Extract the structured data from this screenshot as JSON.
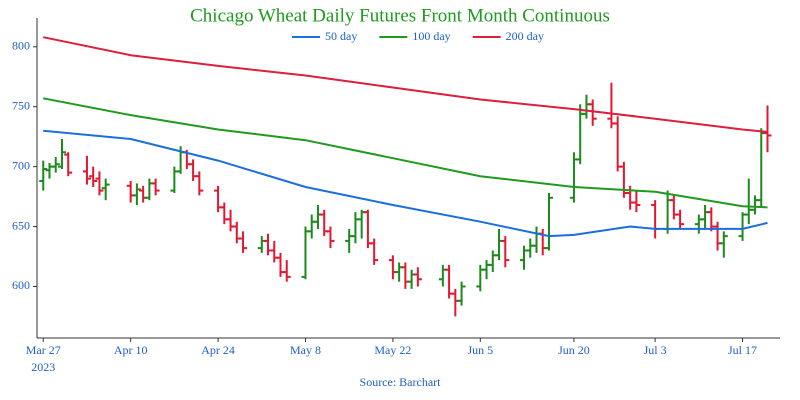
{
  "chart_data": {
    "type": "ohlc",
    "title": "Chicago Wheat Daily Futures Front Month Continuous",
    "source": "Source: Barchart",
    "x_year_label": "2023",
    "title_color": "#1e9a1e",
    "up_color": "#1a8a1a",
    "down_color": "#e3172f",
    "legend": "top",
    "x": [
      "2023-03-27",
      "2023-03-28",
      "2023-03-29",
      "2023-03-30",
      "2023-03-31",
      "2023-04-03",
      "2023-04-04",
      "2023-04-05",
      "2023-04-06",
      "2023-04-10",
      "2023-04-11",
      "2023-04-12",
      "2023-04-13",
      "2023-04-14",
      "2023-04-17",
      "2023-04-18",
      "2023-04-19",
      "2023-04-20",
      "2023-04-21",
      "2023-04-24",
      "2023-04-25",
      "2023-04-26",
      "2023-04-27",
      "2023-04-28",
      "2023-05-01",
      "2023-05-02",
      "2023-05-03",
      "2023-05-04",
      "2023-05-05",
      "2023-05-08",
      "2023-05-09",
      "2023-05-10",
      "2023-05-11",
      "2023-05-12",
      "2023-05-15",
      "2023-05-16",
      "2023-05-17",
      "2023-05-18",
      "2023-05-19",
      "2023-05-22",
      "2023-05-23",
      "2023-05-24",
      "2023-05-25",
      "2023-05-26",
      "2023-05-30",
      "2023-05-31",
      "2023-06-01",
      "2023-06-02",
      "2023-06-05",
      "2023-06-06",
      "2023-06-07",
      "2023-06-08",
      "2023-06-09",
      "2023-06-12",
      "2023-06-13",
      "2023-06-14",
      "2023-06-15",
      "2023-06-16",
      "2023-06-20",
      "2023-06-21",
      "2023-06-22",
      "2023-06-23",
      "2023-06-26",
      "2023-06-27",
      "2023-06-28",
      "2023-06-29",
      "2023-06-30",
      "2023-07-03",
      "2023-07-05",
      "2023-07-06",
      "2023-07-07",
      "2023-07-10",
      "2023-07-11",
      "2023-07-12",
      "2023-07-13",
      "2023-07-14",
      "2023-07-17",
      "2023-07-18",
      "2023-07-19",
      "2023-07-20",
      "2023-07-21"
    ],
    "open": [
      688,
      697,
      700,
      700,
      710,
      696,
      692,
      690,
      682,
      684,
      676,
      680,
      674,
      686,
      680,
      696,
      712,
      702,
      692,
      680,
      666,
      656,
      650,
      640,
      632,
      638,
      630,
      624,
      612,
      608,
      646,
      654,
      660,
      646,
      638,
      642,
      656,
      662,
      636,
      622,
      612,
      616,
      604,
      610,
      606,
      614,
      594,
      588,
      600,
      614,
      618,
      626,
      638,
      622,
      630,
      634,
      644,
      632,
      674,
      706,
      744,
      752,
      740,
      736,
      700,
      678,
      670,
      668,
      648,
      672,
      660,
      652,
      656,
      662,
      650,
      636,
      642,
      660,
      664,
      672,
      728
    ],
    "high": [
      705,
      703,
      708,
      723,
      712,
      709,
      700,
      696,
      690,
      688,
      686,
      684,
      690,
      690,
      700,
      717,
      714,
      706,
      696,
      684,
      670,
      664,
      654,
      646,
      642,
      644,
      638,
      628,
      622,
      650,
      660,
      668,
      664,
      650,
      648,
      662,
      664,
      664,
      640,
      626,
      620,
      620,
      614,
      616,
      618,
      618,
      598,
      604,
      618,
      622,
      630,
      648,
      642,
      634,
      640,
      650,
      648,
      678,
      712,
      752,
      760,
      756,
      770,
      742,
      704,
      684,
      680,
      672,
      680,
      676,
      664,
      660,
      668,
      666,
      654,
      646,
      662,
      690,
      676,
      732,
      751
    ],
    "low": [
      680,
      690,
      695,
      698,
      692,
      685,
      683,
      676,
      672,
      670,
      668,
      670,
      672,
      676,
      678,
      694,
      698,
      688,
      676,
      662,
      652,
      646,
      636,
      628,
      628,
      626,
      620,
      608,
      604,
      606,
      640,
      648,
      642,
      632,
      628,
      636,
      640,
      632,
      618,
      606,
      604,
      598,
      598,
      600,
      600,
      590,
      575,
      584,
      596,
      606,
      612,
      622,
      616,
      614,
      624,
      628,
      626,
      630,
      670,
      702,
      740,
      734,
      732,
      696,
      674,
      664,
      662,
      640,
      644,
      656,
      648,
      644,
      648,
      646,
      630,
      624,
      638,
      652,
      660,
      666,
      712
    ],
    "close": [
      698,
      700,
      702,
      712,
      695,
      690,
      688,
      680,
      685,
      676,
      681,
      674,
      686,
      680,
      696,
      712,
      702,
      692,
      680,
      666,
      656,
      650,
      640,
      632,
      638,
      630,
      624,
      612,
      608,
      646,
      654,
      660,
      646,
      638,
      642,
      656,
      662,
      636,
      622,
      612,
      616,
      604,
      610,
      606,
      614,
      594,
      588,
      600,
      614,
      618,
      626,
      638,
      622,
      630,
      634,
      644,
      632,
      674,
      706,
      744,
      752,
      740,
      736,
      700,
      678,
      670,
      668,
      648,
      672,
      660,
      652,
      656,
      662,
      650,
      636,
      642,
      660,
      664,
      672,
      728,
      726
    ],
    "overlays": [
      {
        "name": "50 day",
        "color": "#1a6fdc",
        "x": [
          "2023-03-27",
          "2023-04-10",
          "2023-04-24",
          "2023-05-08",
          "2023-05-22",
          "2023-06-05",
          "2023-06-16",
          "2023-06-20",
          "2023-06-29",
          "2023-07-03",
          "2023-07-17",
          "2023-07-21"
        ],
        "values": [
          730,
          723,
          705,
          683,
          668,
          654,
          642,
          643,
          650,
          648,
          648,
          653
        ]
      },
      {
        "name": "100 day",
        "color": "#1e9a1e",
        "x": [
          "2023-03-27",
          "2023-04-10",
          "2023-04-24",
          "2023-05-08",
          "2023-05-22",
          "2023-06-05",
          "2023-06-20",
          "2023-07-03",
          "2023-07-17",
          "2023-07-21"
        ],
        "values": [
          757,
          743,
          731,
          722,
          707,
          692,
          683,
          679,
          667,
          666
        ]
      },
      {
        "name": "200 day",
        "color": "#dc1f3c",
        "x": [
          "2023-03-27",
          "2023-04-10",
          "2023-04-24",
          "2023-05-08",
          "2023-05-22",
          "2023-06-05",
          "2023-06-20",
          "2023-07-03",
          "2023-07-17",
          "2023-07-21"
        ],
        "values": [
          808,
          793,
          784,
          776,
          766,
          756,
          748,
          740,
          731,
          729
        ]
      }
    ],
    "xlim": [
      "2023-03-26",
      "2023-07-23"
    ],
    "xticks": [
      {
        "value": "2023-03-27",
        "label": "Mar 27"
      },
      {
        "value": "2023-04-10",
        "label": "Apr 10"
      },
      {
        "value": "2023-04-24",
        "label": "Apr 24"
      },
      {
        "value": "2023-05-08",
        "label": "May 8"
      },
      {
        "value": "2023-05-22",
        "label": "May 22"
      },
      {
        "value": "2023-06-05",
        "label": "Jun 5"
      },
      {
        "value": "2023-06-20",
        "label": "Jun 20"
      },
      {
        "value": "2023-07-03",
        "label": "Jul 3"
      },
      {
        "value": "2023-07-17",
        "label": "Jul 17"
      }
    ],
    "ylim": [
      557,
      824
    ],
    "yticks": [
      600,
      650,
      700,
      750,
      800
    ]
  }
}
